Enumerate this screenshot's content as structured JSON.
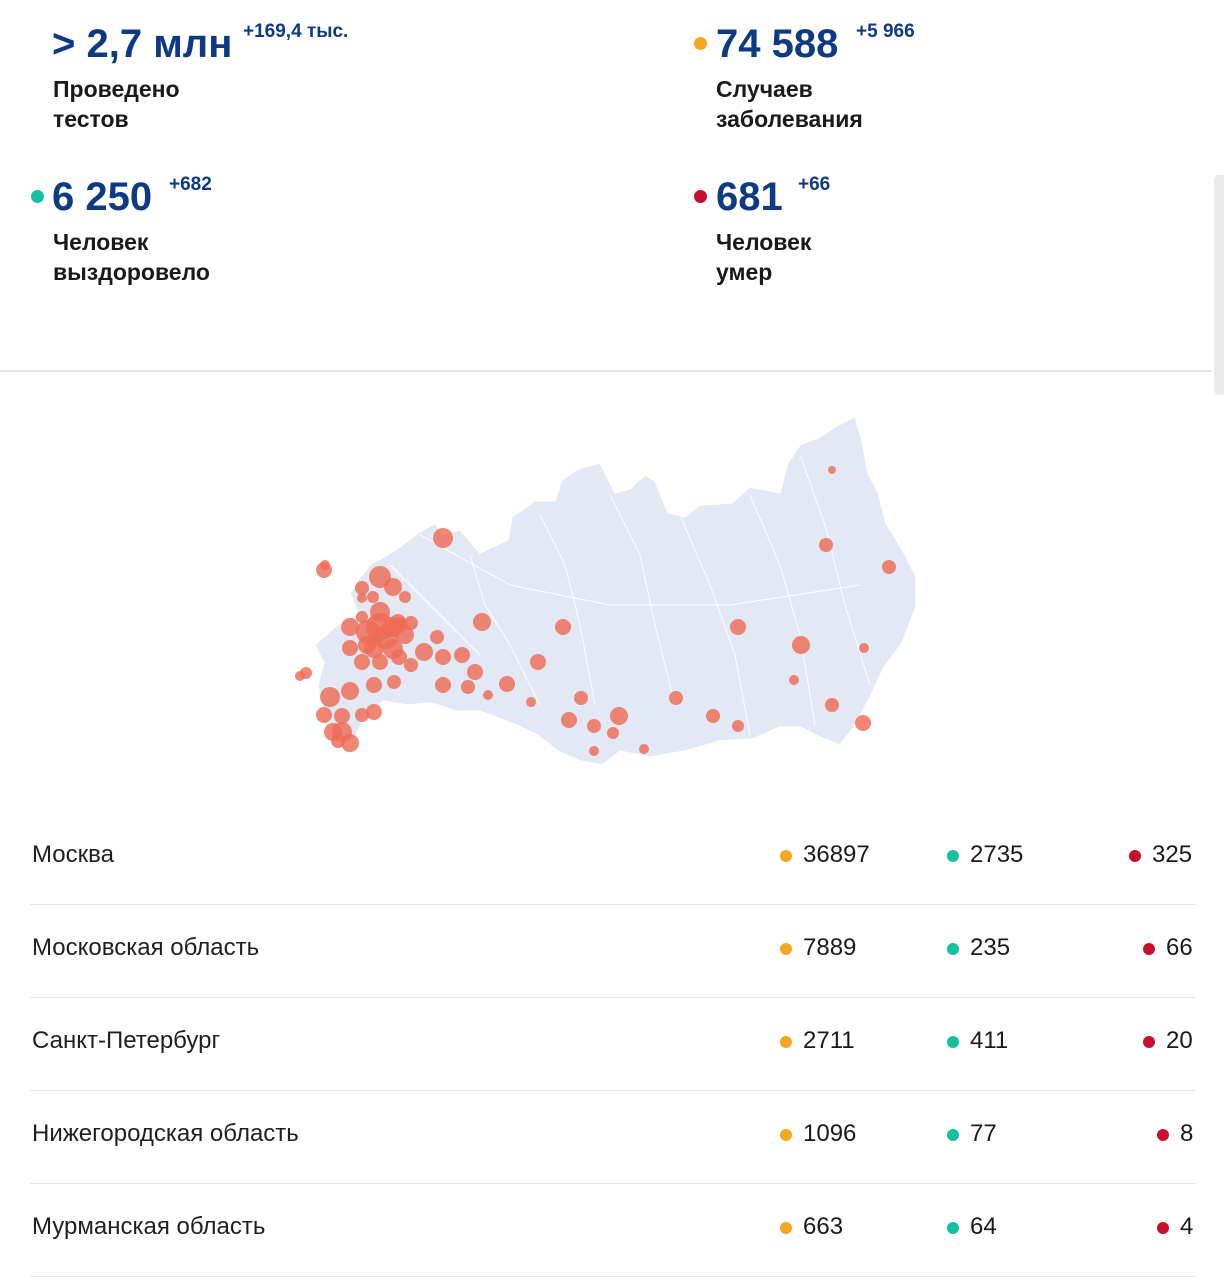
{
  "stats": {
    "tests": {
      "value": "> 2,7 млн",
      "delta": "+169,4 тыс.",
      "label_line1": "Проведено",
      "label_line2": "тестов"
    },
    "cases": {
      "value": "74 588",
      "delta": "+5 966",
      "label_line1": "Случаев",
      "label_line2": "заболевания",
      "color": "#f5a623"
    },
    "recovered": {
      "value": "6 250",
      "delta": "+682",
      "label_line1": "Человек",
      "label_line2": "выздоровело",
      "color": "#15c0a0"
    },
    "deaths": {
      "value": "681",
      "delta": "+66",
      "label_line1": "Человек",
      "label_line2": "умер",
      "color": "#c8102e"
    }
  },
  "map": {
    "land_color": "#e3e8f5",
    "marker_color": "#ee6b55"
  },
  "table": {
    "rows": [
      {
        "region": "Москва",
        "cases": "36897",
        "recovered": "2735",
        "deaths": "325"
      },
      {
        "region": "Московская область",
        "cases": "7889",
        "recovered": "235",
        "deaths": "66"
      },
      {
        "region": "Санкт-Петербург",
        "cases": "2711",
        "recovered": "411",
        "deaths": "20"
      },
      {
        "region": "Нижегородская область",
        "cases": "1096",
        "recovered": "77",
        "deaths": "8"
      },
      {
        "region": "Мурманская область",
        "cases": "663",
        "recovered": "64",
        "deaths": "4"
      }
    ]
  }
}
